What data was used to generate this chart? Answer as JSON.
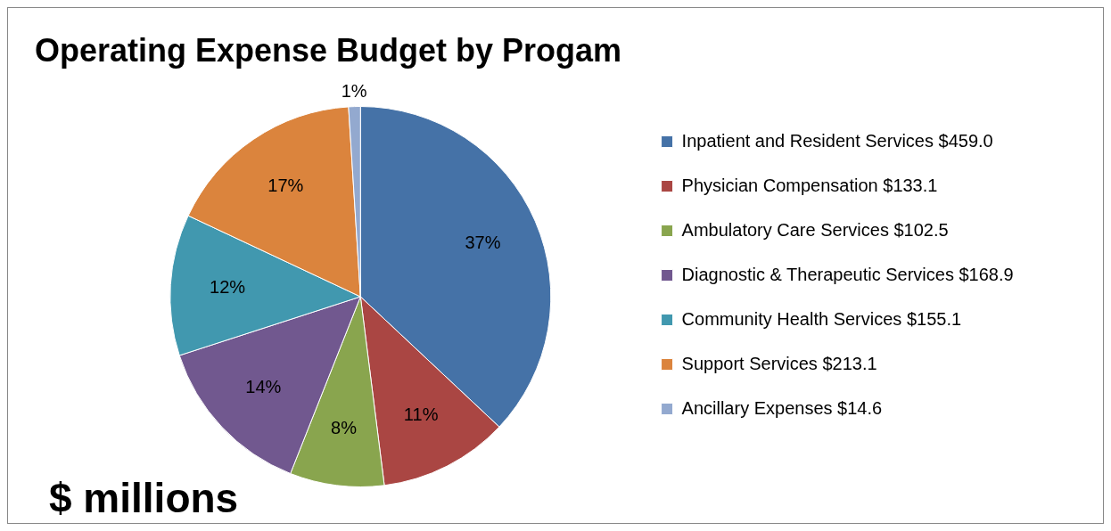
{
  "chart_data": {
    "type": "pie",
    "title": "Operating Expense Budget by Progam",
    "categories": [
      "Inpatient and Resident Services $459.0",
      "Physician Compensation $133.1",
      "Ambulatory Care Services $102.5",
      "Diagnostic & Therapeutic Services $168.9",
      "Community Health Services $155.1",
      "Support Services $213.1",
      "Ancillary Expenses $14.6"
    ],
    "values": [
      37,
      11,
      8,
      14,
      12,
      17,
      1
    ],
    "colors": [
      "#4572a7",
      "#aa4643",
      "#89a54e",
      "#71588f",
      "#4198af",
      "#db843d",
      "#93a9cf"
    ],
    "value_labels": [
      "37%",
      "11%",
      "8%",
      "14%",
      "12%",
      "17%",
      "1%"
    ],
    "legend": "right",
    "annotations": [
      "$ millions"
    ]
  }
}
